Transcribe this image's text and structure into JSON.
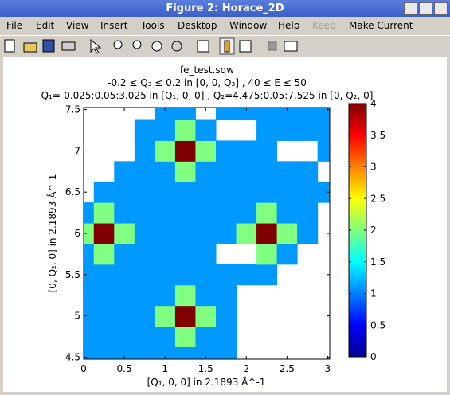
{
  "window": {
    "title": "Figure 2: Horace_2D"
  },
  "menu": [
    "File",
    "Edit",
    "View",
    "Insert",
    "Tools",
    "Desktop",
    "Window",
    "Help",
    "Keep",
    "Make Current"
  ],
  "chart_data": {
    "type": "heatmap",
    "title": [
      "fe_test.sqw",
      "-0.2 ≤ Q₃ ≤ 0.2 in [0, 0, Q₃] , 40 ≤ E ≤ 50",
      "Q₁=-0.025:0.05:3.025 in [Q₁, 0, 0] , Q₂=4.475:0.05:7.525 in [0, Q₂, 0]"
    ],
    "xlabel": "[Q₁, 0, 0] in 2.1893 Å^-1",
    "ylabel": "[0, Q₂, 0] in 2.1893 Å^-1",
    "x": [
      0,
      0.25,
      0.5,
      0.75,
      1,
      1.25,
      1.5,
      1.75,
      2,
      2.25,
      2.5,
      2.75,
      3
    ],
    "y": [
      4.5,
      4.75,
      5,
      5.25,
      5.5,
      5.75,
      6,
      6.25,
      6.5,
      6.75,
      7,
      7.25,
      7.5
    ],
    "z": [
      [
        1.1,
        1.1,
        1.1,
        1.1,
        1.1,
        1.1,
        1.1,
        1.1,
        null,
        null,
        null,
        null,
        null
      ],
      [
        1.1,
        1.1,
        1.1,
        1.1,
        1.1,
        2,
        1.1,
        1.1,
        null,
        null,
        null,
        null,
        null
      ],
      [
        1.1,
        1.1,
        1.1,
        1.1,
        2,
        4,
        2,
        1.1,
        null,
        null,
        null,
        null,
        null
      ],
      [
        1.1,
        1.1,
        1.1,
        1.1,
        1.1,
        2,
        1.1,
        1.1,
        null,
        null,
        null,
        null,
        null
      ],
      [
        1.1,
        1.1,
        1.1,
        1.1,
        1.1,
        1.1,
        1.1,
        1.1,
        1.1,
        1.1,
        null,
        null,
        null
      ],
      [
        1.1,
        2,
        1.1,
        1.1,
        1.1,
        1.1,
        1.1,
        null,
        null,
        2,
        1.1,
        null,
        null
      ],
      [
        2,
        4,
        2,
        1.1,
        1.1,
        1.1,
        1.1,
        1.1,
        2,
        4,
        2,
        1.1,
        null
      ],
      [
        1.1,
        2,
        1.1,
        1.1,
        1.1,
        1.1,
        1.1,
        1.1,
        1.1,
        2,
        1.1,
        1.1,
        null
      ],
      [
        null,
        1.1,
        1.1,
        1.1,
        1.1,
        1.1,
        1.1,
        1.1,
        1.1,
        1.1,
        1.1,
        1.1,
        1.1
      ],
      [
        null,
        null,
        1.1,
        1.1,
        1.1,
        2,
        1.1,
        1.1,
        1.1,
        1.1,
        1.1,
        1.1,
        null
      ],
      [
        null,
        null,
        null,
        1.1,
        2,
        4,
        2,
        1.1,
        1.1,
        1.1,
        null,
        null,
        1.1
      ],
      [
        null,
        null,
        null,
        1.1,
        1.1,
        2,
        1.1,
        null,
        null,
        1.1,
        1.1,
        1.1,
        1.1
      ],
      [
        null,
        null,
        null,
        null,
        1.1,
        1.1,
        null,
        1.1,
        1.1,
        1.1,
        1.1,
        1.1,
        1.1
      ]
    ],
    "xlim": [
      0,
      3.025
    ],
    "ylim": [
      4.475,
      7.525
    ],
    "xticks": [
      0,
      0.5,
      1,
      1.5,
      2,
      2.5,
      3
    ],
    "yticks": [
      4.5,
      5,
      5.5,
      6,
      6.5,
      7,
      7.5
    ],
    "clim": [
      0,
      4
    ],
    "cticks": [
      0,
      0.5,
      1,
      1.5,
      2,
      2.5,
      3,
      3.5,
      4
    ],
    "colormap": "jet"
  }
}
